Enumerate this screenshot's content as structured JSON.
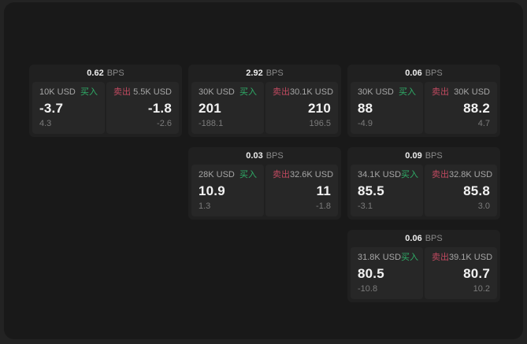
{
  "colors": {
    "background": "#232323",
    "surface": "#191919",
    "card": "#202020",
    "panel": "#272727",
    "buy_green": "#2fae68",
    "sell_red": "#c04a60"
  },
  "cards": [
    {
      "spread_value": "0.62",
      "spread_unit": "BPS",
      "buy": {
        "amount": "10K USD",
        "side_label": "买入",
        "price": "-3.7",
        "change": "4.3"
      },
      "sell": {
        "side_label": "卖出",
        "amount": "5.5K USD",
        "price": "-1.8",
        "change": "-2.6"
      }
    },
    {
      "spread_value": "2.92",
      "spread_unit": "BPS",
      "buy": {
        "amount": "30K USD",
        "side_label": "买入",
        "price": "201",
        "change": "-188.1"
      },
      "sell": {
        "side_label": "卖出",
        "amount": "30.1K USD",
        "price": "210",
        "change": "196.5"
      }
    },
    {
      "spread_value": "0.06",
      "spread_unit": "BPS",
      "buy": {
        "amount": "30K USD",
        "side_label": "买入",
        "price": "88",
        "change": "-4.9"
      },
      "sell": {
        "side_label": "卖出",
        "amount": "30K USD",
        "price": "88.2",
        "change": "4.7"
      }
    },
    {
      "spread_value": "0.03",
      "spread_unit": "BPS",
      "buy": {
        "amount": "28K USD",
        "side_label": "买入",
        "price": "10.9",
        "change": "1.3"
      },
      "sell": {
        "side_label": "卖出",
        "amount": "32.6K USD",
        "price": "11",
        "change": "-1.8"
      }
    },
    {
      "spread_value": "0.09",
      "spread_unit": "BPS",
      "buy": {
        "amount": "34.1K USD",
        "side_label": "买入",
        "price": "85.5",
        "change": "-3.1"
      },
      "sell": {
        "side_label": "卖出",
        "amount": "32.8K USD",
        "price": "85.8",
        "change": "3.0"
      }
    },
    {
      "spread_value": "0.06",
      "spread_unit": "BPS",
      "buy": {
        "amount": "31.8K USD",
        "side_label": "买入",
        "price": "80.5",
        "change": "-10.8"
      },
      "sell": {
        "side_label": "卖出",
        "amount": "39.1K USD",
        "price": "80.7",
        "change": "10.2"
      }
    }
  ]
}
